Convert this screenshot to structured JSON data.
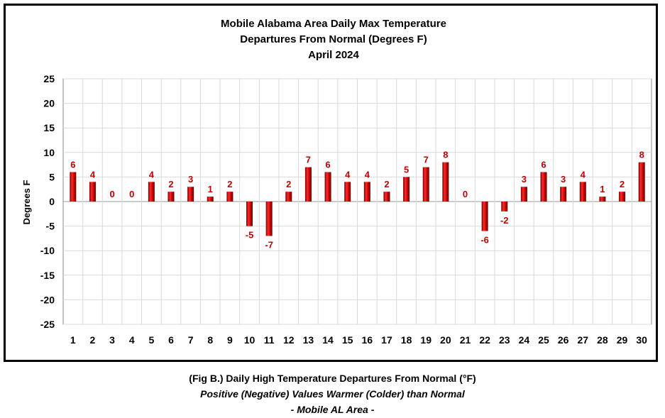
{
  "chart_data": {
    "type": "bar",
    "title": [
      "Mobile Alabama Area Daily Max Temperature",
      "Departures From Normal (Degrees F)",
      "April 2024"
    ],
    "xlabel": "",
    "ylabel": "Degrees F",
    "ylim": [
      -25,
      25
    ],
    "yticks": [
      25,
      20,
      15,
      10,
      5,
      0,
      -5,
      -10,
      -15,
      -20,
      -25
    ],
    "categories": [
      "1",
      "2",
      "3",
      "4",
      "5",
      "6",
      "7",
      "8",
      "9",
      "10",
      "11",
      "12",
      "13",
      "14",
      "15",
      "16",
      "17",
      "18",
      "19",
      "20",
      "21",
      "22",
      "23",
      "24",
      "25",
      "26",
      "27",
      "28",
      "29",
      "30"
    ],
    "values": [
      6,
      4,
      0,
      0,
      4,
      2,
      3,
      1,
      2,
      -5,
      -7,
      2,
      7,
      6,
      4,
      4,
      2,
      5,
      7,
      8,
      0,
      -6,
      -2,
      3,
      6,
      3,
      4,
      1,
      2,
      8
    ],
    "grid": true,
    "bar_color": "#c00000",
    "label_color": "#c00000"
  },
  "caption": {
    "line1": "(Fig B.) Daily High Temperature Departures From Normal (°F)",
    "line2": "Positive (Negative) Values Warmer (Colder) than Normal",
    "line3": "- Mobile AL Area -"
  }
}
